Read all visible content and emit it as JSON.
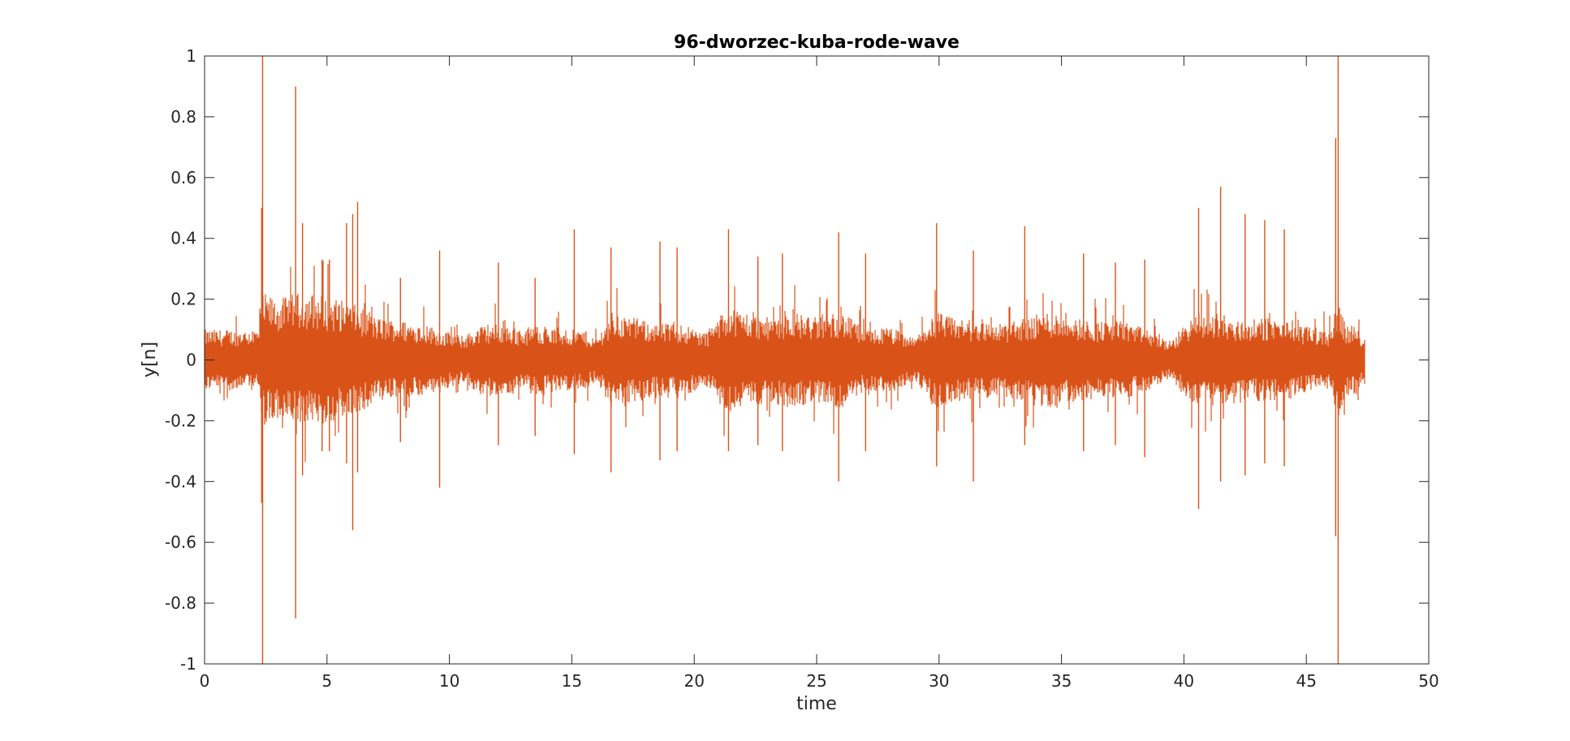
{
  "chart_data": {
    "type": "line",
    "title": "96-dworzec-kuba-rode-wave",
    "xlabel": "time",
    "ylabel": "y[n]",
    "xlim": [
      0,
      50
    ],
    "ylim": [
      -1,
      1
    ],
    "xticks": [
      0,
      5,
      10,
      15,
      20,
      25,
      30,
      35,
      40,
      45,
      50
    ],
    "yticks": [
      -1,
      -0.8,
      -0.6,
      -0.4,
      -0.2,
      0,
      0.2,
      0.4,
      0.6,
      0.8,
      1
    ],
    "xtick_labels": [
      "0",
      "5",
      "10",
      "15",
      "20",
      "25",
      "30",
      "35",
      "40",
      "45",
      "50"
    ],
    "ytick_labels": [
      "-1",
      "-0.8",
      "-0.6",
      "-0.4",
      "-0.2",
      "0",
      "0.2",
      "0.4",
      "0.6",
      "0.8",
      "1"
    ],
    "grid": false,
    "series": [
      {
        "color": "#D95319",
        "duration": 47.4,
        "envelope": {
          "time": [
            0,
            1,
            2.2,
            2.35,
            2.4,
            3,
            3.7,
            4.5,
            5.5,
            6.2,
            7,
            8,
            9,
            9.6,
            10.5,
            11.5,
            12,
            13,
            13.5,
            14.5,
            15.5,
            16,
            16.6,
            17.5,
            18.5,
            19.5,
            20.5,
            21.4,
            22,
            23,
            24,
            25,
            26,
            27,
            28,
            29,
            29.9,
            30.5,
            31.5,
            32.5,
            33.5,
            34.5,
            35.5,
            36.5,
            37.5,
            38.5,
            39.5,
            40,
            40.6,
            41,
            41.5,
            42,
            42.5,
            43.5,
            44.5,
            45.5,
            46,
            46.3,
            46.6,
            47,
            47.4
          ],
          "amplitude": [
            0.1,
            0.1,
            0.1,
            0.2,
            0.22,
            0.2,
            0.22,
            0.22,
            0.2,
            0.18,
            0.14,
            0.13,
            0.12,
            0.1,
            0.08,
            0.12,
            0.12,
            0.1,
            0.12,
            0.1,
            0.1,
            0.07,
            0.16,
            0.14,
            0.12,
            0.12,
            0.09,
            0.18,
            0.16,
            0.14,
            0.16,
            0.14,
            0.16,
            0.1,
            0.11,
            0.07,
            0.16,
            0.14,
            0.13,
            0.12,
            0.14,
            0.16,
            0.14,
            0.13,
            0.13,
            0.1,
            0.06,
            0.12,
            0.16,
            0.15,
            0.16,
            0.13,
            0.13,
            0.14,
            0.12,
            0.1,
            0.1,
            0.2,
            0.12,
            0.11,
            0.08
          ]
        },
        "peaks": [
          {
            "t": 2.33,
            "max": 0.5,
            "min": -0.47
          },
          {
            "t": 2.37,
            "max": 1.0,
            "min": -1.0
          },
          {
            "t": 3.72,
            "max": 0.9,
            "min": -0.85
          },
          {
            "t": 4.0,
            "max": 0.45,
            "min": -0.38
          },
          {
            "t": 4.8,
            "max": 0.33,
            "min": -0.3
          },
          {
            "t": 5.1,
            "max": 0.33,
            "min": -0.3
          },
          {
            "t": 5.8,
            "max": 0.45,
            "min": -0.34
          },
          {
            "t": 6.05,
            "max": 0.48,
            "min": -0.56
          },
          {
            "t": 6.25,
            "max": 0.52,
            "min": -0.37
          },
          {
            "t": 8.0,
            "max": 0.27,
            "min": -0.27
          },
          {
            "t": 9.6,
            "max": 0.36,
            "min": -0.42
          },
          {
            "t": 12.0,
            "max": 0.32,
            "min": -0.28
          },
          {
            "t": 13.5,
            "max": 0.27,
            "min": -0.25
          },
          {
            "t": 15.1,
            "max": 0.43,
            "min": -0.31
          },
          {
            "t": 16.6,
            "max": 0.37,
            "min": -0.37
          },
          {
            "t": 18.6,
            "max": 0.39,
            "min": -0.33
          },
          {
            "t": 19.3,
            "max": 0.37,
            "min": -0.3
          },
          {
            "t": 21.4,
            "max": 0.43,
            "min": -0.3
          },
          {
            "t": 22.6,
            "max": 0.34,
            "min": -0.28
          },
          {
            "t": 23.6,
            "max": 0.35,
            "min": -0.3
          },
          {
            "t": 25.9,
            "max": 0.42,
            "min": -0.4
          },
          {
            "t": 27.0,
            "max": 0.35,
            "min": -0.3
          },
          {
            "t": 29.9,
            "max": 0.45,
            "min": -0.35
          },
          {
            "t": 31.4,
            "max": 0.36,
            "min": -0.4
          },
          {
            "t": 33.5,
            "max": 0.44,
            "min": -0.28
          },
          {
            "t": 35.9,
            "max": 0.35,
            "min": -0.3
          },
          {
            "t": 37.2,
            "max": 0.32,
            "min": -0.28
          },
          {
            "t": 38.4,
            "max": 0.33,
            "min": -0.32
          },
          {
            "t": 40.6,
            "max": 0.5,
            "min": -0.49
          },
          {
            "t": 41.5,
            "max": 0.57,
            "min": -0.4
          },
          {
            "t": 42.5,
            "max": 0.48,
            "min": -0.38
          },
          {
            "t": 43.3,
            "max": 0.46,
            "min": -0.34
          },
          {
            "t": 44.1,
            "max": 0.43,
            "min": -0.35
          },
          {
            "t": 46.2,
            "max": 0.73,
            "min": -0.58
          },
          {
            "t": 46.3,
            "max": 1.0,
            "min": -1.0
          }
        ]
      }
    ]
  }
}
